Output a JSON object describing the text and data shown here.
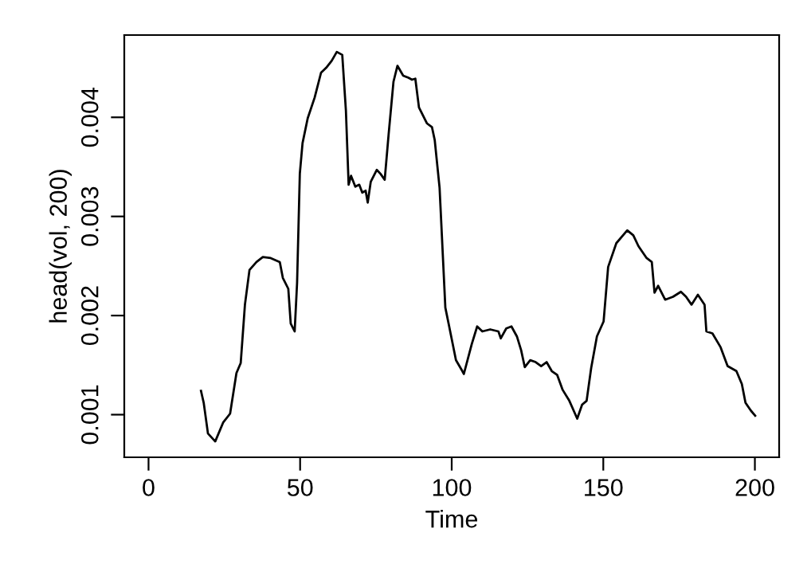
{
  "chart_data": {
    "type": "line",
    "xlabel": "Time",
    "ylabel": "head(vol, 200)",
    "xlim": [
      -8,
      208
    ],
    "ylim": [
      0.00057,
      0.00483
    ],
    "xticks": [
      0,
      50,
      100,
      150,
      200
    ],
    "yticks": [
      0.001,
      0.002,
      0.003,
      0.004
    ],
    "grid": false,
    "legend": false,
    "marker": "none",
    "line_style": "solid",
    "series": [
      {
        "color": "#000000",
        "x": [
          17.3,
          18.2,
          19.6,
          22.0,
          24.6,
          26.9,
          29.0,
          30.4,
          31.8,
          33.3,
          35.6,
          37.7,
          40.3,
          43.3,
          44.3,
          46.1,
          46.9,
          48.2,
          49.0,
          49.9,
          50.8,
          52.5,
          54.8,
          56.9,
          58.6,
          60.4,
          62.1,
          63.9,
          65.1,
          66.0,
          66.8,
          68.2,
          69.5,
          70.5,
          71.6,
          72.3,
          73.3,
          75.3,
          76.5,
          77.9,
          79.2,
          80.8,
          82.1,
          84.0,
          85.7,
          86.9,
          88.0,
          89.2,
          91.8,
          93.5,
          94.4,
          96.0,
          97.9,
          99.1,
          101.4,
          103.5,
          104.0,
          106.6,
          108.4,
          110.1,
          112.7,
          115.4,
          116.2,
          118.0,
          119.7,
          121.5,
          122.9,
          124.1,
          125.9,
          127.7,
          129.5,
          131.3,
          133.0,
          134.8,
          136.6,
          138.8,
          141.4,
          143.0,
          144.5,
          146.0,
          147.9,
          150.1,
          151.6,
          154.3,
          157.9,
          159.9,
          161.6,
          164.3,
          166.0,
          166.9,
          168.1,
          170.4,
          173.0,
          175.6,
          177.3,
          179.1,
          181.2,
          183.4,
          184.0,
          186.0,
          188.7,
          191.0,
          193.9,
          195.7,
          196.9,
          198.7,
          200.1
        ],
        "values": [
          0.00124,
          0.00112,
          0.00081,
          0.00073,
          0.00092,
          0.00101,
          0.00142,
          0.00152,
          0.00211,
          0.00246,
          0.00254,
          0.00259,
          0.00258,
          0.00254,
          0.00238,
          0.00227,
          0.00192,
          0.00184,
          0.00233,
          0.00343,
          0.00374,
          0.00399,
          0.0042,
          0.00445,
          0.0045,
          0.00457,
          0.00466,
          0.00463,
          0.00407,
          0.00332,
          0.00341,
          0.0033,
          0.00332,
          0.00324,
          0.00326,
          0.00314,
          0.00335,
          0.00347,
          0.00343,
          0.00337,
          0.00383,
          0.00436,
          0.00452,
          0.00442,
          0.0044,
          0.00438,
          0.00439,
          0.0041,
          0.00394,
          0.0039,
          0.00377,
          0.00329,
          0.00208,
          0.0019,
          0.00155,
          0.00144,
          0.00141,
          0.00171,
          0.00189,
          0.00184,
          0.00186,
          0.00184,
          0.00177,
          0.00187,
          0.00189,
          0.00179,
          0.00165,
          0.00148,
          0.00155,
          0.00153,
          0.00149,
          0.00153,
          0.00144,
          0.0014,
          0.00125,
          0.00114,
          0.00096,
          0.0011,
          0.00114,
          0.00147,
          0.00179,
          0.00194,
          0.00249,
          0.00273,
          0.00286,
          0.00281,
          0.0027,
          0.00258,
          0.00254,
          0.00223,
          0.0023,
          0.00216,
          0.00219,
          0.00224,
          0.00219,
          0.00211,
          0.00221,
          0.00211,
          0.00184,
          0.00182,
          0.00168,
          0.00149,
          0.00144,
          0.00131,
          0.00112,
          0.00104,
          0.00099
        ]
      }
    ]
  }
}
